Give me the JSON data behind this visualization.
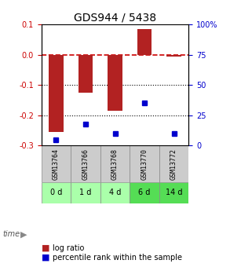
{
  "title": "GDS944 / 5438",
  "categories": [
    "GSM13764",
    "GSM13766",
    "GSM13768",
    "GSM13770",
    "GSM13772"
  ],
  "time_labels": [
    "0 d",
    "1 d",
    "4 d",
    "6 d",
    "14 d"
  ],
  "log_ratio": [
    -0.255,
    -0.125,
    -0.185,
    0.085,
    -0.005
  ],
  "percentile_rank": [
    5,
    18,
    10,
    35,
    10
  ],
  "bar_color": "#b22222",
  "dot_color": "#0000cd",
  "ylim_left": [
    -0.3,
    0.1
  ],
  "ylim_right": [
    0,
    100
  ],
  "yticks_left": [
    -0.3,
    -0.2,
    -0.1,
    0.0,
    0.1
  ],
  "yticks_right": [
    0,
    25,
    50,
    75,
    100
  ],
  "zero_line_color": "#cc0000",
  "grid_color": "#000000",
  "bg_plot": "#ffffff",
  "bg_gsm": "#cccccc",
  "bg_time_light": "#aaffaa",
  "bg_time_dark": "#55dd55",
  "time_label_color": "#006600",
  "title_color": "#000000",
  "bar_width": 0.5
}
